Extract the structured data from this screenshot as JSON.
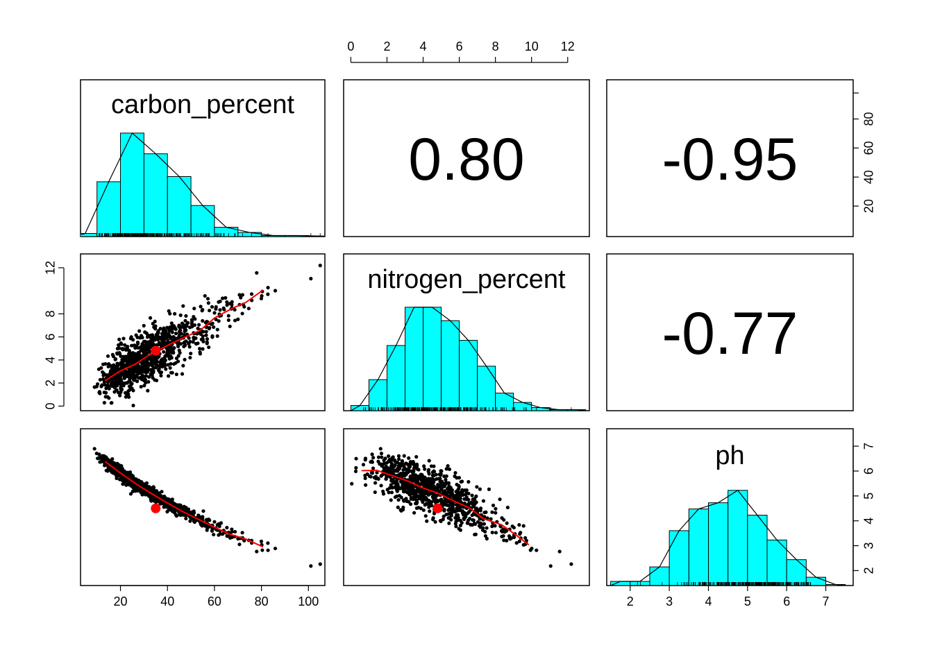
{
  "chart_data": {
    "type": "scatter",
    "title": "",
    "variables": [
      "carbon_percent",
      "nitrogen_percent",
      "ph"
    ],
    "correlations": [
      {
        "pair": [
          "carbon_percent",
          "nitrogen_percent"
        ],
        "label": "0.80",
        "value": 0.8
      },
      {
        "pair": [
          "carbon_percent",
          "ph"
        ],
        "label": "-0.95",
        "value": -0.95
      },
      {
        "pair": [
          "nitrogen_percent",
          "ph"
        ],
        "label": "-0.77",
        "value": -0.77
      }
    ],
    "axes": {
      "carbon_percent": {
        "range": [
          3,
          107
        ],
        "ticks": [
          "20",
          "40",
          "60",
          "80",
          "100"
        ]
      },
      "nitrogen_percent": {
        "range": [
          -0.4,
          13.2
        ],
        "ticks": [
          "0",
          "2",
          "4",
          "6",
          "8",
          "10",
          "12"
        ],
        "left_ticks": [
          "0",
          "2",
          "4",
          "6",
          "8",
          "12"
        ]
      },
      "ph": {
        "range": [
          1.4,
          7.7
        ],
        "ticks": [
          "2",
          "3",
          "4",
          "5",
          "6",
          "7"
        ]
      }
    },
    "histograms": {
      "carbon_percent": {
        "bin_edges": [
          0,
          10,
          20,
          30,
          40,
          50,
          60,
          70,
          80,
          90,
          100,
          110
        ],
        "relative_heights": [
          0.03,
          0.53,
          1.0,
          0.8,
          0.58,
          0.3,
          0.09,
          0.04,
          0.01,
          0.01,
          0.005
        ]
      },
      "nitrogen_percent": {
        "bin_edges": [
          0,
          1,
          2,
          3,
          4,
          5,
          6,
          7,
          8,
          9,
          10,
          11,
          12,
          13
        ],
        "relative_heights": [
          0.05,
          0.3,
          0.63,
          1.0,
          1.0,
          0.87,
          0.68,
          0.43,
          0.17,
          0.08,
          0.03,
          0.01,
          0.01
        ]
      },
      "ph": {
        "bin_edges": [
          1.5,
          2.0,
          2.5,
          3.0,
          3.5,
          4.0,
          4.5,
          5.0,
          5.5,
          6.0,
          6.5,
          7.0,
          7.5
        ],
        "relative_heights": [
          0.04,
          0.04,
          0.18,
          0.53,
          0.74,
          0.8,
          0.92,
          0.68,
          0.44,
          0.25,
          0.08,
          0.01
        ]
      }
    },
    "means": {
      "carbon_percent": 35,
      "nitrogen_percent": 4.8,
      "ph": 4.5
    },
    "n_points": 900,
    "point_color": "#000000",
    "fit_line_color": "#ff0000",
    "mean_point_color": "#ff0000",
    "histogram_fill": "#00ffff"
  }
}
